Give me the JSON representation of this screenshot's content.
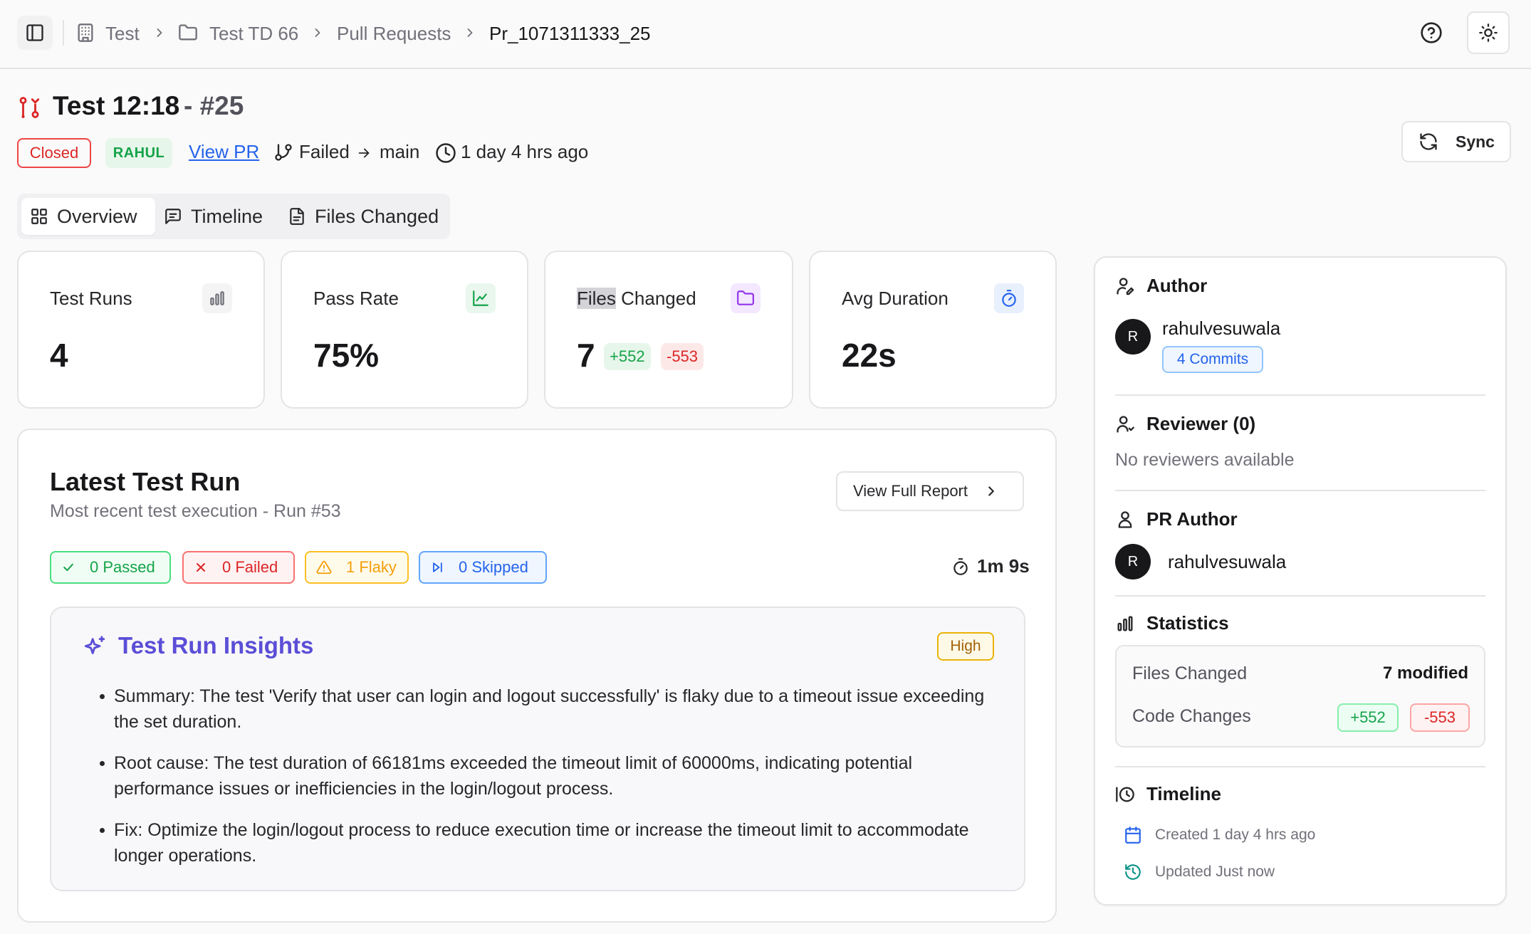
{
  "breadcrumb": {
    "items": [
      "Test",
      "Test TD 66",
      "Pull Requests",
      "Pr_1071311333_25"
    ]
  },
  "pr": {
    "title": "Test 12:18",
    "number": "- #25",
    "status": "Closed",
    "author_tag": "RAHUL",
    "view_pr_label": "View PR",
    "source_branch": "Failed",
    "target_branch": "main",
    "age": "1 day 4 hrs ago",
    "sync_label": "Sync"
  },
  "tabs": [
    {
      "label": "Overview",
      "active": true
    },
    {
      "label": "Timeline",
      "active": false
    },
    {
      "label": "Files Changed",
      "active": false
    }
  ],
  "stats": {
    "test_runs": {
      "label": "Test Runs",
      "value": "4"
    },
    "pass_rate": {
      "label": "Pass Rate",
      "value": "75%"
    },
    "files_changed": {
      "label_highlight": "Files",
      "label_rest": " Changed",
      "value": "7",
      "additions": "+552",
      "deletions": "-553"
    },
    "avg_duration": {
      "label": "Avg Duration",
      "value": "22s"
    }
  },
  "latest_run": {
    "title": "Latest Test Run",
    "subtitle": "Most recent test execution - Run #53",
    "report_button": "View Full Report",
    "passed": "0 Passed",
    "failed": "0 Failed",
    "flaky": "1 Flaky",
    "skipped": "0 Skipped",
    "duration": "1m 9s"
  },
  "insights": {
    "title": "Test Run Insights",
    "severity": "High",
    "items": [
      "Summary: The test 'Verify that user can login and logout successfully' is flaky due to a timeout issue exceeding the set duration.",
      "Root cause: The test duration of 66181ms exceeded the timeout limit of 60000ms, indicating potential performance issues or inefficiencies in the login/logout process.",
      "Fix: Optimize the login/logout process to reduce execution time or increase the timeout limit to accommodate longer operations."
    ]
  },
  "sidebar": {
    "author": {
      "heading": "Author",
      "avatar": "R",
      "name": "rahulvesuwala",
      "commits": "4 Commits"
    },
    "reviewer": {
      "heading": "Reviewer (0)",
      "empty": "No reviewers available"
    },
    "pr_author": {
      "heading": "PR Author",
      "avatar": "R",
      "name": "rahulvesuwala"
    },
    "statistics": {
      "heading": "Statistics",
      "files_label": "Files Changed",
      "files_value": "7 modified",
      "code_label": "Code Changes",
      "additions": "+552",
      "deletions": "-553"
    },
    "timeline": {
      "heading": "Timeline",
      "created": "Created 1 day 4 hrs ago",
      "updated": "Updated Just now"
    }
  },
  "colors": {
    "accent_purple": "#5b4ed6",
    "success": "#16a34a",
    "danger": "#dc2626",
    "warning": "#f59e0b",
    "info": "#2563eb"
  },
  "icons": [
    "sidebar-toggle-icon",
    "building-icon",
    "folder-icon",
    "chevron-right-icon",
    "help-icon",
    "sun-icon",
    "git-pull-request-icon",
    "git-branch-icon",
    "arrow-right-icon",
    "clock-icon",
    "refresh-icon",
    "grid-icon",
    "message-icon",
    "file-icon",
    "bar-chart-icon",
    "line-chart-icon",
    "stopwatch-icon",
    "check-icon",
    "x-icon",
    "warning-icon",
    "skip-icon",
    "sparkles-icon",
    "user-pen-icon",
    "user-icon",
    "calendar-icon",
    "history-icon"
  ]
}
